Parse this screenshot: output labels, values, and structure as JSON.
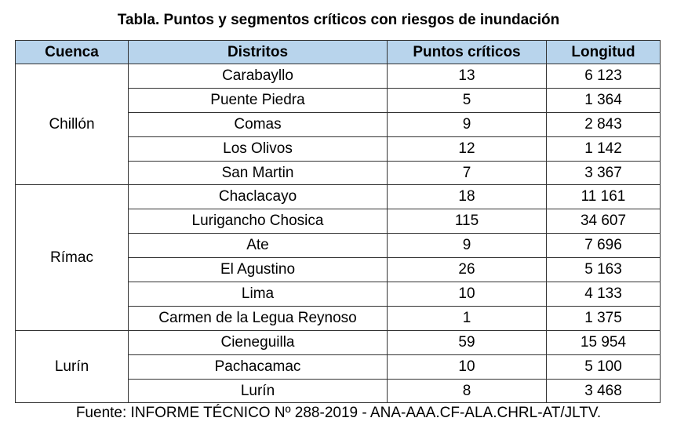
{
  "title": "Tabla. Puntos y segmentos críticos con riesgos de inundación",
  "colors": {
    "header_bg": "#b8d4ec",
    "border": "#333333"
  },
  "headers": {
    "basin": "Cuenca",
    "district": "Distritos",
    "points": "Puntos críticos",
    "length": "Longitud"
  },
  "groups": [
    {
      "basin": "Chillón",
      "rows": [
        {
          "district": "Carabayllo",
          "points": "13",
          "length": "6 123"
        },
        {
          "district": "Puente Piedra",
          "points": "5",
          "length": "1 364"
        },
        {
          "district": "Comas",
          "points": "9",
          "length": "2 843"
        },
        {
          "district": "Los Olivos",
          "points": "12",
          "length": "1 142"
        },
        {
          "district": "San Martin",
          "points": "7",
          "length": "3 367"
        }
      ]
    },
    {
      "basin": "Rímac",
      "rows": [
        {
          "district": "Chaclacayo",
          "points": "18",
          "length": "11 161"
        },
        {
          "district": "Lurigancho Chosica",
          "points": "115",
          "length": "34 607"
        },
        {
          "district": "Ate",
          "points": "9",
          "length": "7 696"
        },
        {
          "district": "El Agustino",
          "points": "26",
          "length": "5 163"
        },
        {
          "district": "Lima",
          "points": "10",
          "length": "4 133"
        },
        {
          "district": "Carmen de la Legua Reynoso",
          "points": "1",
          "length": "1 375"
        }
      ]
    },
    {
      "basin": "Lurín",
      "rows": [
        {
          "district": "Cieneguilla",
          "points": "59",
          "length": "15 954"
        },
        {
          "district": "Pachacamac",
          "points": "10",
          "length": "5 100"
        },
        {
          "district": "Lurín",
          "points": "8",
          "length": "3 468"
        }
      ]
    }
  ],
  "source": "Fuente: INFORME TÉCNICO Nº 288-2019 - ANA-AAA.CF-ALA.CHRL-AT/JLTV."
}
